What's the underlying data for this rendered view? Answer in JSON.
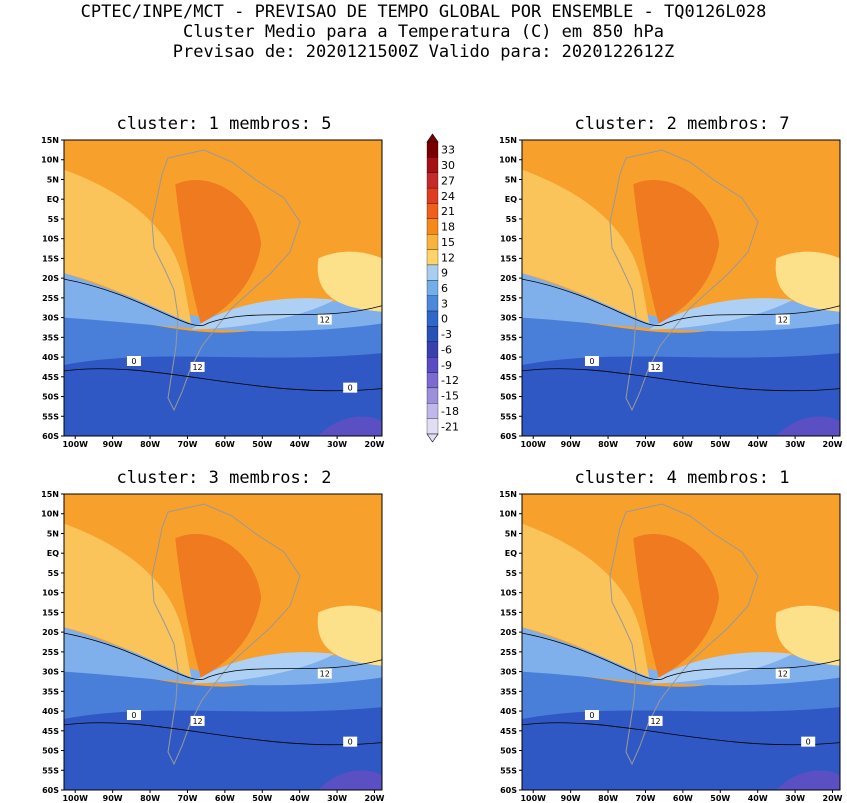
{
  "header": {
    "line1": "CPTEC/INPE/MCT - PREVISAO DE TEMPO GLOBAL POR ENSEMBLE - TQ0126L028",
    "line2": "Cluster Medio para a Temperatura (C) em 850 hPa",
    "line3": "Previsao de: 2020121500Z   Valido para: 2020122612Z"
  },
  "axes": {
    "lat_ticks": [
      "15N",
      "10N",
      "5N",
      "EQ",
      "5S",
      "10S",
      "15S",
      "20S",
      "25S",
      "30S",
      "35S",
      "40S",
      "45S",
      "50S",
      "55S",
      "60S"
    ],
    "lon_ticks": [
      "100W",
      "90W",
      "80W",
      "70W",
      "60W",
      "50W",
      "40W",
      "30W",
      "20W"
    ]
  },
  "colorbar": {
    "labels": [
      "33",
      "30",
      "27",
      "24",
      "21",
      "18",
      "15",
      "12",
      "9",
      "6",
      "3",
      "0",
      "-3",
      "-6",
      "-9",
      "-12",
      "-15",
      "-18",
      "-21"
    ],
    "colors": [
      "#7a0000",
      "#a50f15",
      "#c42a2a",
      "#e03c1f",
      "#f0601a",
      "#f7891b",
      "#fbb23c",
      "#fdd36a",
      "#a8cef2",
      "#74aeea",
      "#4a89dc",
      "#2f68c9",
      "#2952b8",
      "#3a3fb0",
      "#5a4cc2",
      "#7c6ad0",
      "#9c8fdc",
      "#c0b8ea",
      "#e2ddf5"
    ]
  },
  "panels": [
    {
      "title": "cluster: 1   membros: 5",
      "contour_labels": [
        {
          "text": "12"
        },
        {
          "text": "12"
        },
        {
          "text": "0"
        },
        {
          "text": "0"
        }
      ]
    },
    {
      "title": "cluster: 2   membros: 7",
      "contour_labels": [
        {
          "text": "12"
        },
        {
          "text": "12"
        },
        {
          "text": "0"
        }
      ]
    },
    {
      "title": "cluster: 3   membros: 2",
      "contour_labels": [
        {
          "text": "12"
        },
        {
          "text": "12"
        },
        {
          "text": "0"
        },
        {
          "text": "0"
        }
      ]
    },
    {
      "title": "cluster: 4   membros: 1",
      "contour_labels": [
        {
          "text": "12"
        },
        {
          "text": "12"
        },
        {
          "text": "0"
        },
        {
          "text": "0"
        }
      ]
    }
  ]
}
